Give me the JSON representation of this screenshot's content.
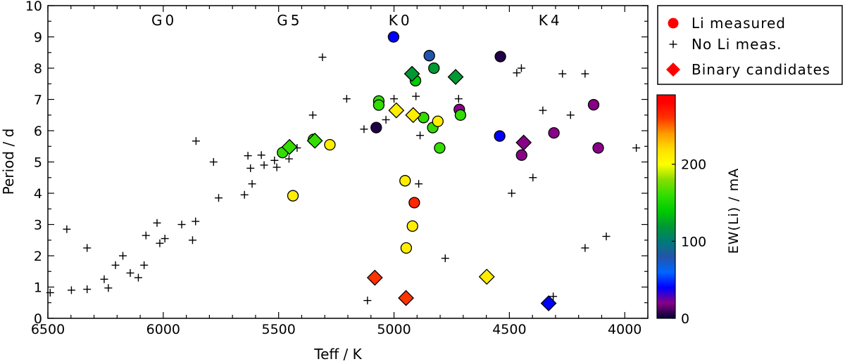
{
  "chart_data": {
    "type": "scatter",
    "xlabel": "Teff / K",
    "ylabel": "Period / d",
    "xlim": [
      6500,
      3900
    ],
    "ylim": [
      0,
      10
    ],
    "xticks": [
      6500,
      6000,
      5500,
      5000,
      4500,
      4000
    ],
    "yticks": [
      0,
      1,
      2,
      3,
      4,
      5,
      6,
      7,
      8,
      9,
      10
    ],
    "spectral_types": [
      {
        "label": "G0",
        "x": 5996
      },
      {
        "label": "G5",
        "x": 5452
      },
      {
        "label": "K0",
        "x": 4972
      },
      {
        "label": "K4",
        "x": 4322
      }
    ],
    "legend": [
      {
        "label": "Li measured",
        "marker": "circle",
        "color": "#ff0000"
      },
      {
        "label": "No Li meas.",
        "marker": "plus",
        "color": "#000000"
      },
      {
        "label": "Binary candidates",
        "marker": "diamond",
        "color": "#ff0000"
      }
    ],
    "colorbar": {
      "label": "EW(Li) / mA",
      "ticks": [
        0,
        100,
        200
      ],
      "range": [
        0,
        290
      ],
      "stops": [
        {
          "v": 0,
          "color": "#000033"
        },
        {
          "v": 20,
          "color": "#880088"
        },
        {
          "v": 40,
          "color": "#0000ff"
        },
        {
          "v": 60,
          "color": "#0066ff"
        },
        {
          "v": 80,
          "color": "#2255aa"
        },
        {
          "v": 100,
          "color": "#007a77"
        },
        {
          "v": 120,
          "color": "#009933"
        },
        {
          "v": 140,
          "color": "#00cc00"
        },
        {
          "v": 160,
          "color": "#33dd00"
        },
        {
          "v": 180,
          "color": "#88dd00"
        },
        {
          "v": 200,
          "color": "#ffff00"
        },
        {
          "v": 220,
          "color": "#ffdd00"
        },
        {
          "v": 240,
          "color": "#ff9900"
        },
        {
          "v": 260,
          "color": "#ff3300"
        },
        {
          "v": 280,
          "color": "#ff0000"
        }
      ]
    },
    "series": [
      {
        "name": "Li measured",
        "marker": "circle",
        "points": [
          {
            "teff": 5002,
            "period": 9.0,
            "ew": 40
          },
          {
            "teff": 4847,
            "period": 8.4,
            "ew": 80
          },
          {
            "teff": 4827,
            "period": 8.0,
            "ew": 120
          },
          {
            "teff": 4907,
            "period": 7.6,
            "ew": 140
          },
          {
            "teff": 4539,
            "period": 8.37,
            "ew": 5
          },
          {
            "teff": 5066,
            "period": 6.95,
            "ew": 160
          },
          {
            "teff": 5066,
            "period": 6.82,
            "ew": 160
          },
          {
            "teff": 4872,
            "period": 6.42,
            "ew": 160
          },
          {
            "teff": 4832,
            "period": 6.1,
            "ew": 160
          },
          {
            "teff": 4810,
            "period": 6.3,
            "ew": 210
          },
          {
            "teff": 4717,
            "period": 6.68,
            "ew": 20
          },
          {
            "teff": 4712,
            "period": 6.5,
            "ew": 160
          },
          {
            "teff": 4802,
            "period": 5.45,
            "ew": 160
          },
          {
            "teff": 5077,
            "period": 6.1,
            "ew": 5
          },
          {
            "teff": 5349,
            "period": 5.72,
            "ew": 160
          },
          {
            "teff": 5483,
            "period": 5.3,
            "ew": 160
          },
          {
            "teff": 5278,
            "period": 5.55,
            "ew": 210
          },
          {
            "teff": 5438,
            "period": 3.92,
            "ew": 210
          },
          {
            "teff": 4542,
            "period": 5.83,
            "ew": 40
          },
          {
            "teff": 4307,
            "period": 5.93,
            "ew": 20
          },
          {
            "teff": 4135,
            "period": 6.83,
            "ew": 20
          },
          {
            "teff": 4115,
            "period": 5.45,
            "ew": 20
          },
          {
            "teff": 4447,
            "period": 5.22,
            "ew": 20
          },
          {
            "teff": 4952,
            "period": 4.4,
            "ew": 210
          },
          {
            "teff": 4912,
            "period": 3.7,
            "ew": 265
          },
          {
            "teff": 4920,
            "period": 2.95,
            "ew": 210
          },
          {
            "teff": 4947,
            "period": 2.25,
            "ew": 210
          }
        ]
      },
      {
        "name": "No Li meas.",
        "marker": "plus",
        "points": [
          {
            "teff": 6490,
            "period": 0.82
          },
          {
            "teff": 6418,
            "period": 2.85
          },
          {
            "teff": 6398,
            "period": 0.9
          },
          {
            "teff": 6330,
            "period": 2.25
          },
          {
            "teff": 6330,
            "period": 0.93
          },
          {
            "teff": 6256,
            "period": 1.25
          },
          {
            "teff": 6238,
            "period": 0.97
          },
          {
            "teff": 6207,
            "period": 1.7
          },
          {
            "teff": 6175,
            "period": 2.0
          },
          {
            "teff": 6143,
            "period": 1.45
          },
          {
            "teff": 6108,
            "period": 1.3
          },
          {
            "teff": 6083,
            "period": 1.7
          },
          {
            "teff": 6075,
            "period": 2.65
          },
          {
            "teff": 6027,
            "period": 3.05
          },
          {
            "teff": 6015,
            "period": 2.4
          },
          {
            "teff": 5993,
            "period": 2.55
          },
          {
            "teff": 5920,
            "period": 3.0
          },
          {
            "teff": 5873,
            "period": 2.5
          },
          {
            "teff": 5860,
            "period": 3.1
          },
          {
            "teff": 5858,
            "period": 5.67
          },
          {
            "teff": 5782,
            "period": 5.0
          },
          {
            "teff": 5760,
            "period": 3.85
          },
          {
            "teff": 5648,
            "period": 3.95
          },
          {
            "teff": 5633,
            "period": 5.2
          },
          {
            "teff": 5622,
            "period": 4.8
          },
          {
            "teff": 5615,
            "period": 4.3
          },
          {
            "teff": 5575,
            "period": 5.22
          },
          {
            "teff": 5563,
            "period": 4.9
          },
          {
            "teff": 5518,
            "period": 5.05
          },
          {
            "teff": 5508,
            "period": 4.83
          },
          {
            "teff": 5455,
            "period": 5.1
          },
          {
            "teff": 5420,
            "period": 5.45
          },
          {
            "teff": 5352,
            "period": 6.5
          },
          {
            "teff": 5310,
            "period": 8.35
          },
          {
            "teff": 5205,
            "period": 7.02
          },
          {
            "teff": 5130,
            "period": 6.05
          },
          {
            "teff": 5115,
            "period": 0.57
          },
          {
            "teff": 5035,
            "period": 6.35
          },
          {
            "teff": 5000,
            "period": 7.02
          },
          {
            "teff": 4905,
            "period": 7.1
          },
          {
            "teff": 4887,
            "period": 5.85
          },
          {
            "teff": 4893,
            "period": 4.3
          },
          {
            "teff": 4778,
            "period": 1.92
          },
          {
            "teff": 4720,
            "period": 7.02
          },
          {
            "teff": 4490,
            "period": 4.0
          },
          {
            "teff": 4468,
            "period": 7.85
          },
          {
            "teff": 4448,
            "period": 8.0
          },
          {
            "teff": 4398,
            "period": 4.5
          },
          {
            "teff": 4355,
            "period": 6.65
          },
          {
            "teff": 4310,
            "period": 0.7
          },
          {
            "teff": 4270,
            "period": 7.82
          },
          {
            "teff": 4235,
            "period": 6.5
          },
          {
            "teff": 4172,
            "period": 7.82
          },
          {
            "teff": 4172,
            "period": 2.25
          },
          {
            "teff": 4080,
            "period": 2.62
          },
          {
            "teff": 3950,
            "period": 5.45
          }
        ]
      },
      {
        "name": "Binary candidates",
        "marker": "diamond",
        "points": [
          {
            "teff": 4922,
            "period": 7.82,
            "ew": 120
          },
          {
            "teff": 4733,
            "period": 7.72,
            "ew": 120
          },
          {
            "teff": 4990,
            "period": 6.65,
            "ew": 210
          },
          {
            "teff": 4917,
            "period": 6.5,
            "ew": 210
          },
          {
            "teff": 5453,
            "period": 5.48,
            "ew": 160
          },
          {
            "teff": 5343,
            "period": 5.68,
            "ew": 160
          },
          {
            "teff": 4438,
            "period": 5.62,
            "ew": 20
          },
          {
            "teff": 5083,
            "period": 1.3,
            "ew": 260
          },
          {
            "teff": 4948,
            "period": 0.65,
            "ew": 260
          },
          {
            "teff": 4598,
            "period": 1.33,
            "ew": 210
          },
          {
            "teff": 4330,
            "period": 0.48,
            "ew": 40
          }
        ]
      }
    ]
  }
}
